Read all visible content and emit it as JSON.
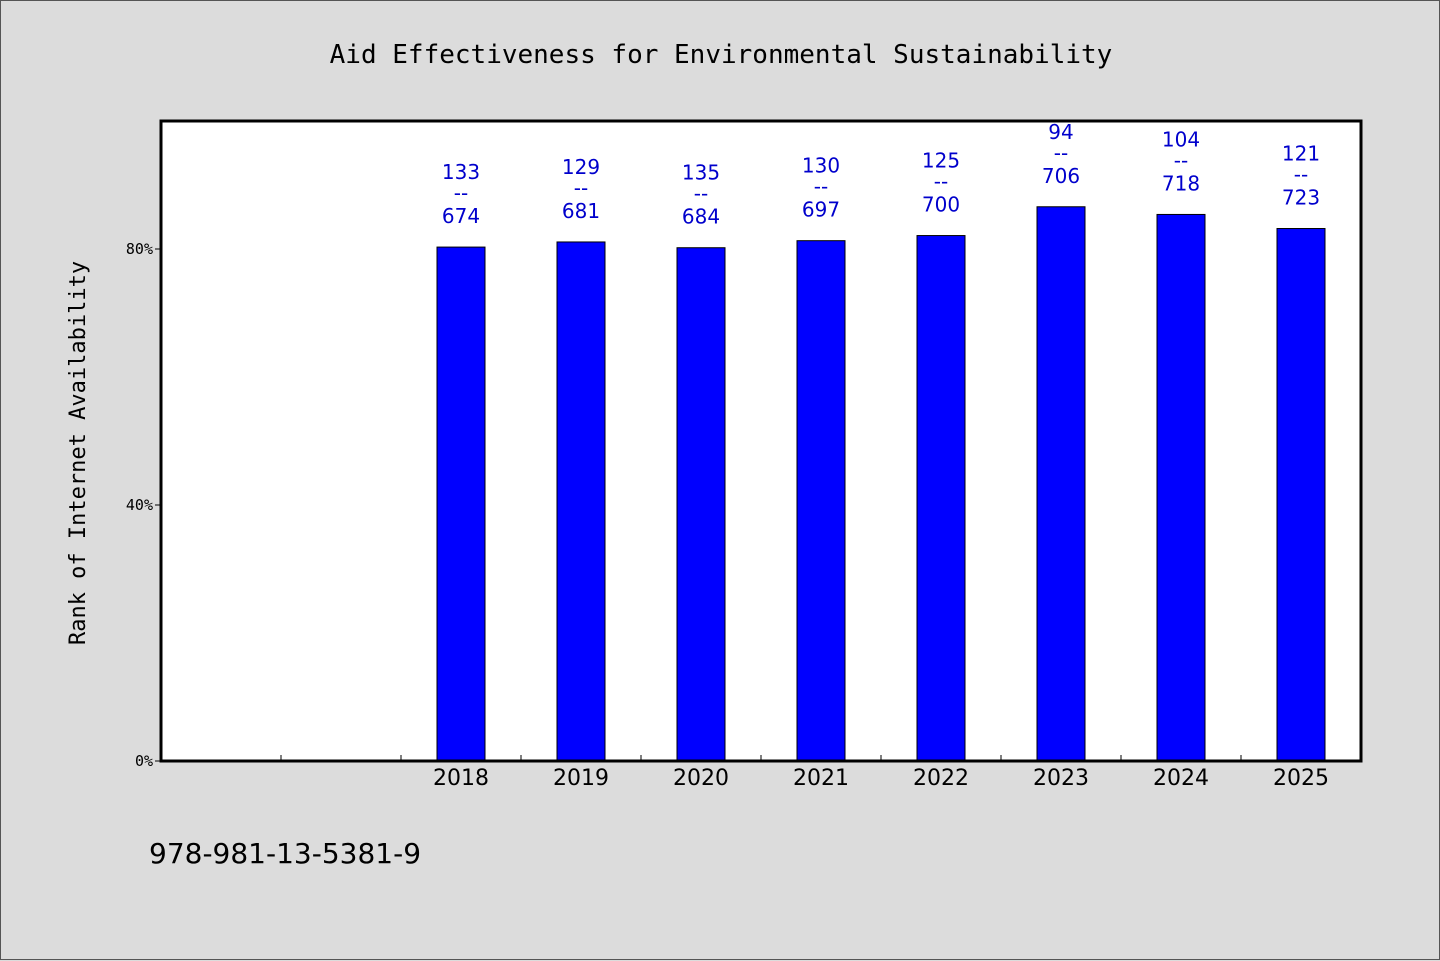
{
  "chart_data": {
    "type": "bar",
    "title": "Aid Effectiveness for Environmental Sustainability",
    "xlabel": "",
    "ylabel": "Rank of Internet Availability",
    "categories": [
      "",
      "",
      "2018",
      "2019",
      "2020",
      "2021",
      "2022",
      "2023",
      "2024",
      "2025"
    ],
    "values": [
      null,
      null,
      80.3,
      81.1,
      80.2,
      81.3,
      82.1,
      86.6,
      85.4,
      83.2
    ],
    "data_labels": [
      {
        "top": "",
        "sep": "",
        "bottom": ""
      },
      {
        "top": "",
        "sep": "",
        "bottom": ""
      },
      {
        "top": "133",
        "sep": "--",
        "bottom": "674"
      },
      {
        "top": "129",
        "sep": "--",
        "bottom": "681"
      },
      {
        "top": "135",
        "sep": "--",
        "bottom": "684"
      },
      {
        "top": "130",
        "sep": "--",
        "bottom": "697"
      },
      {
        "top": "125",
        "sep": "--",
        "bottom": "700"
      },
      {
        "top": "94",
        "sep": "--",
        "bottom": "706"
      },
      {
        "top": "104",
        "sep": "--",
        "bottom": "718"
      },
      {
        "top": "121",
        "sep": "--",
        "bottom": "723"
      }
    ],
    "y_ticks": [
      {
        "value": 0,
        "label": "0%"
      },
      {
        "value": 40,
        "label": "40%"
      },
      {
        "value": 80,
        "label": "80%"
      }
    ],
    "ylim": [
      0,
      100
    ],
    "bar_color": "#0000ff",
    "label_color": "#0000cc",
    "grid": false,
    "legend": "none"
  },
  "footer": {
    "isbn": "978-981-13-5381-9"
  }
}
